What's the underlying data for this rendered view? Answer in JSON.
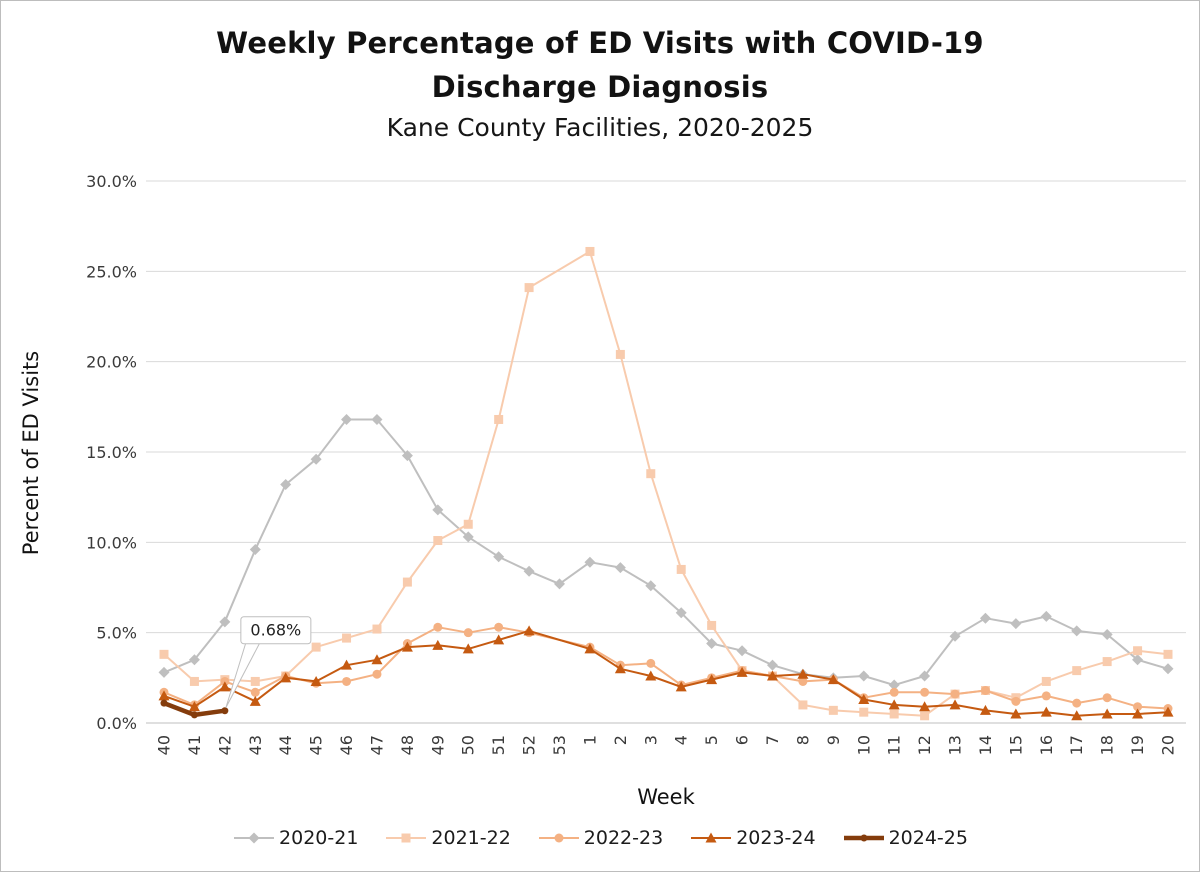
{
  "chart_data": {
    "type": "line",
    "title": "Weekly Percentage of ED Visits with COVID-19 Discharge Diagnosis",
    "title_lines": [
      "Weekly Percentage of ED Visits with COVID-19",
      "Discharge Diagnosis"
    ],
    "subtitle": "Kane County Facilities, 2020-2025",
    "xlabel": "Week",
    "ylabel": "Percent of ED Visits",
    "ylim": [
      0,
      30
    ],
    "grid": "horizontal",
    "legend_position": "bottom",
    "yticks": [
      {
        "value": 0,
        "label": "0.0%"
      },
      {
        "value": 5,
        "label": "5.0%"
      },
      {
        "value": 10,
        "label": "10.0%"
      },
      {
        "value": 15,
        "label": "15.0%"
      },
      {
        "value": 20,
        "label": "20.0%"
      },
      {
        "value": 25,
        "label": "25.0%"
      },
      {
        "value": 30,
        "label": "30.0%"
      }
    ],
    "categories": [
      "40",
      "41",
      "42",
      "43",
      "44",
      "45",
      "46",
      "47",
      "48",
      "49",
      "50",
      "51",
      "52",
      "53",
      "1",
      "2",
      "3",
      "4",
      "5",
      "6",
      "7",
      "8",
      "9",
      "10",
      "11",
      "12",
      "13",
      "14",
      "15",
      "16",
      "17",
      "18",
      "19",
      "20"
    ],
    "series": [
      {
        "name": "2020-21",
        "color": "#BFBFBF",
        "marker": "diamond",
        "width": 2,
        "values": [
          2.8,
          3.5,
          5.6,
          9.6,
          13.2,
          14.6,
          16.8,
          16.8,
          14.8,
          11.8,
          10.3,
          9.2,
          8.4,
          7.7,
          8.9,
          8.6,
          7.6,
          6.1,
          4.4,
          4.0,
          3.2,
          2.7,
          2.5,
          2.6,
          2.1,
          2.6,
          4.8,
          5.8,
          5.5,
          5.9,
          5.1,
          4.9,
          3.5,
          3.0
        ]
      },
      {
        "name": "2021-22",
        "color": "#F8CBAD",
        "marker": "square",
        "width": 2,
        "values": [
          3.8,
          2.3,
          2.4,
          2.3,
          2.6,
          4.2,
          4.7,
          5.2,
          7.8,
          10.1,
          11.0,
          16.8,
          24.1,
          null,
          26.1,
          20.4,
          13.8,
          8.5,
          5.4,
          2.9,
          2.6,
          1.0,
          0.7,
          0.6,
          0.5,
          0.4,
          1.6,
          1.8,
          1.4,
          2.3,
          2.9,
          3.4,
          4.0,
          3.8
        ]
      },
      {
        "name": "2022-23",
        "color": "#F4B183",
        "marker": "circle",
        "width": 2,
        "values": [
          1.7,
          1.0,
          2.3,
          1.7,
          2.6,
          2.2,
          2.3,
          2.7,
          4.4,
          5.3,
          5.0,
          5.3,
          5.0,
          null,
          4.2,
          3.2,
          3.3,
          2.1,
          2.5,
          2.9,
          2.6,
          2.3,
          2.4,
          1.4,
          1.7,
          1.7,
          1.6,
          1.8,
          1.2,
          1.5,
          1.1,
          1.4,
          0.9,
          0.8
        ]
      },
      {
        "name": "2023-24",
        "color": "#C55A11",
        "marker": "triangle",
        "width": 2,
        "values": [
          1.5,
          0.9,
          2.0,
          1.2,
          2.5,
          2.3,
          3.2,
          3.5,
          4.2,
          4.3,
          4.1,
          4.6,
          5.1,
          null,
          4.1,
          3.0,
          2.6,
          2.0,
          2.4,
          2.8,
          2.6,
          2.7,
          2.4,
          1.3,
          1.0,
          0.9,
          1.0,
          0.7,
          0.5,
          0.6,
          0.4,
          0.5,
          0.5,
          0.6
        ]
      },
      {
        "name": "2024-25",
        "color": "#843C0C",
        "marker": "dot",
        "width": 4.5,
        "values": [
          1.1,
          0.45,
          0.68,
          null,
          null,
          null,
          null,
          null,
          null,
          null,
          null,
          null,
          null,
          null,
          null,
          null,
          null,
          null,
          null,
          null,
          null,
          null,
          null,
          null,
          null,
          null,
          null,
          null,
          null,
          null,
          null,
          null,
          null,
          null
        ]
      }
    ],
    "annotation": {
      "label": "0.68%",
      "series": "2024-25",
      "category": "42"
    },
    "colors": {
      "gridline": "#D9D9D9",
      "axis_line": "#BFBFBF",
      "callout_border": "#BFBFBF"
    }
  }
}
